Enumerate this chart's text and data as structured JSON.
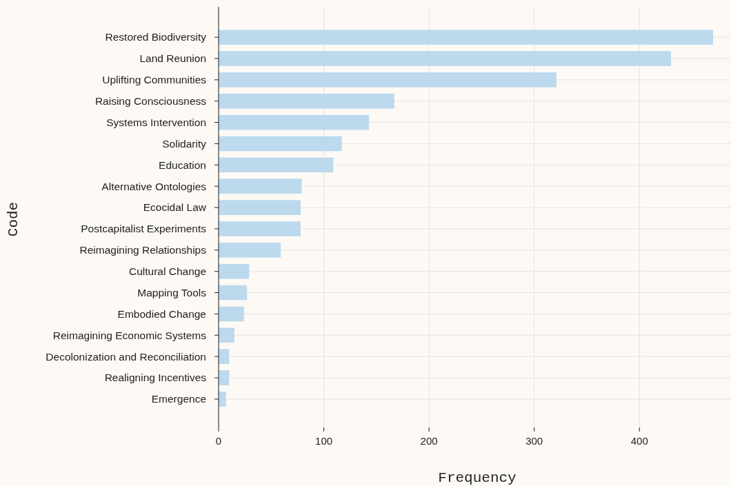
{
  "chart_data": {
    "type": "bar",
    "orientation": "horizontal",
    "xlabel": "Frequency",
    "ylabel": "Code",
    "categories": [
      "Restored Biodiversity",
      "Land Reunion",
      "Uplifting Communities",
      "Raising Consciousness",
      "Systems Intervention",
      "Solidarity",
      "Education",
      "Alternative Ontologies",
      "Ecocidal Law",
      "Postcapitalist Experiments",
      "Reimagining Relationships",
      "Cultural Change",
      "Mapping Tools",
      "Embodied Change",
      "Reimagining Economic Systems",
      "Decolonization and Reconciliation",
      "Realigning Incentives",
      "Emergence"
    ],
    "values": [
      470,
      430,
      321,
      167,
      143,
      117,
      109,
      79,
      78,
      78,
      59,
      29,
      27,
      24,
      15,
      10,
      10,
      7
    ],
    "color": "#bcd9ee",
    "xlim": [
      0,
      487
    ],
    "xticks": [
      0,
      100,
      200,
      300,
      400
    ],
    "grid": true
  }
}
